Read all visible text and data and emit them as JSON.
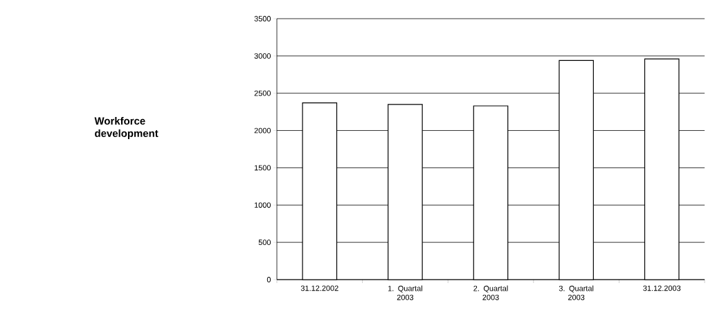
{
  "chart_data": {
    "type": "bar",
    "title": "Workforce development",
    "categories": [
      "31.12.2002",
      "1. Quartal 2003",
      "2. Quartal 2003",
      "3. Quartal 2003",
      "31.12.2003"
    ],
    "values": [
      2370,
      2350,
      2330,
      2940,
      2960
    ],
    "color": "#ffffff",
    "ylim": [
      0,
      3500
    ],
    "yticks": [
      0,
      500,
      1000,
      1500,
      2000,
      2500,
      3000,
      3500
    ],
    "grid": "y"
  }
}
